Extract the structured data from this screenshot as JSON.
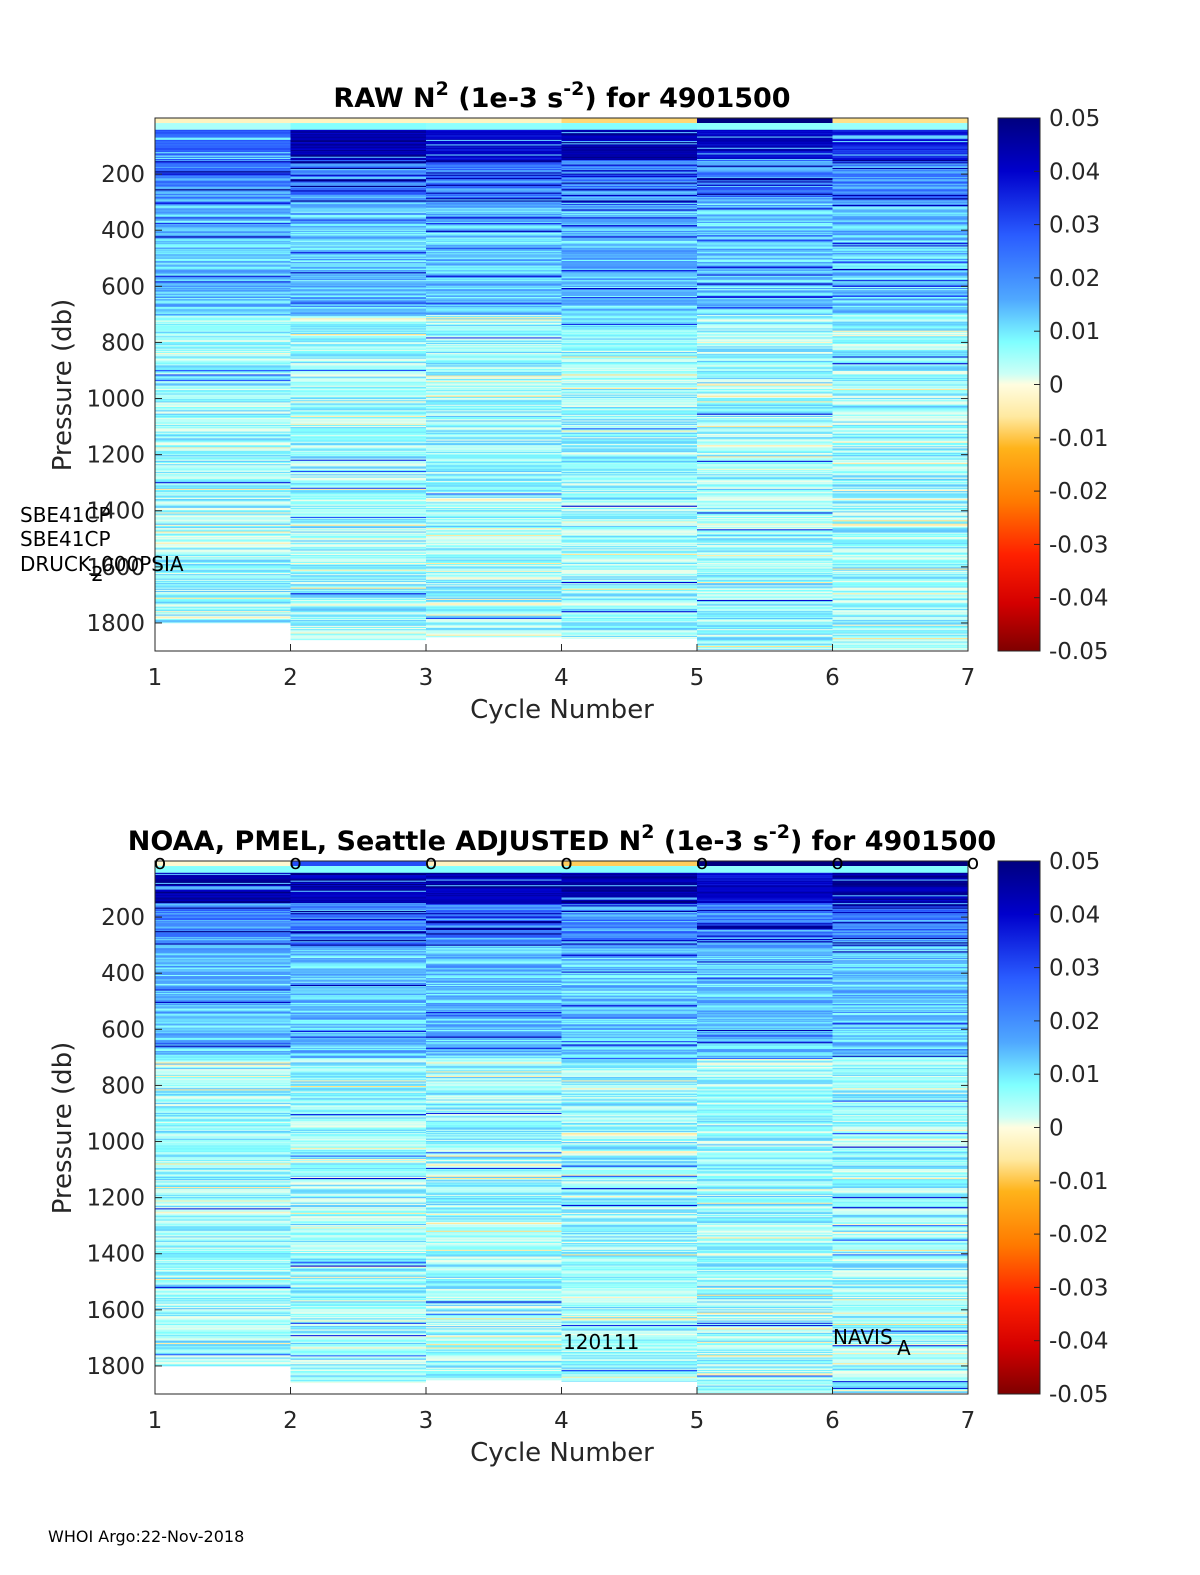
{
  "footer": "WHOI Argo:22-Nov-2018",
  "colors": {
    "deep_blue": "#00007f",
    "cyan": "#7fffff",
    "cream": "#fffde0",
    "dark_red": "#7f0000",
    "axis": "#262626"
  },
  "chart_data": [
    {
      "type": "heatmap",
      "title_parts": [
        "RAW N",
        "2",
        " (1e-3 s",
        "-2",
        ") for 4901500"
      ],
      "xlabel": "Cycle Number",
      "ylabel": "Pressure (db)",
      "xlim": [
        1,
        7
      ],
      "ylim": [
        1900,
        0
      ],
      "xticks": [
        1,
        2,
        3,
        4,
        5,
        6,
        7
      ],
      "yticks": [
        200,
        400,
        600,
        800,
        1000,
        1200,
        1400,
        1600,
        1800
      ],
      "colorbar": {
        "range": [
          -0.05,
          0.05
        ],
        "ticks": [
          "0.05",
          "0.04",
          "0.03",
          "0.02",
          "0.01",
          "0",
          "-0.01",
          "-0.02",
          "-0.03",
          "-0.04",
          "-0.05"
        ]
      },
      "columns": [
        {
          "cycle": 1,
          "pmax": 1800,
          "near_surface": 0.03,
          "surface_value": -0.002
        },
        {
          "cycle": 2,
          "pmax": 1860,
          "near_surface": 0.05,
          "surface_value": -0.002
        },
        {
          "cycle": 3,
          "pmax": 1850,
          "near_surface": 0.045,
          "surface_value": -0.002
        },
        {
          "cycle": 4,
          "pmax": 1855,
          "near_surface": 0.05,
          "surface_value": -0.006
        },
        {
          "cycle": 5,
          "pmax": 1895,
          "near_surface": 0.045,
          "surface_value": 0.05
        },
        {
          "cycle": 6,
          "pmax": 1895,
          "near_surface": 0.04,
          "surface_value": -0.005
        }
      ],
      "annotations": [
        "SBE41CP",
        "SBE41CP",
        "DRUCK_000PSIA",
        "2"
      ],
      "markers": []
    },
    {
      "type": "heatmap",
      "title_parts": [
        "NOAA, PMEL, Seattle  ADJUSTED N",
        "2",
        " (1e-3 s",
        "-2",
        ") for 4901500"
      ],
      "xlabel": "Cycle Number",
      "ylabel": "Pressure (db)",
      "xlim": [
        1,
        7
      ],
      "ylim": [
        1900,
        0
      ],
      "xticks": [
        1,
        2,
        3,
        4,
        5,
        6,
        7
      ],
      "yticks": [
        200,
        400,
        600,
        800,
        1000,
        1200,
        1400,
        1600,
        1800
      ],
      "colorbar": {
        "range": [
          -0.05,
          0.05
        ],
        "ticks": [
          "0.05",
          "0.04",
          "0.03",
          "0.02",
          "0.01",
          "0",
          "-0.01",
          "-0.02",
          "-0.03",
          "-0.04",
          "-0.05"
        ]
      },
      "columns": [
        {
          "cycle": 1,
          "pmax": 1800,
          "near_surface": 0.05,
          "surface_value": -0.001
        },
        {
          "cycle": 2,
          "pmax": 1860,
          "near_surface": 0.05,
          "surface_value": 0.03
        },
        {
          "cycle": 3,
          "pmax": 1850,
          "near_surface": 0.05,
          "surface_value": -0.002
        },
        {
          "cycle": 4,
          "pmax": 1855,
          "near_surface": 0.05,
          "surface_value": -0.007
        },
        {
          "cycle": 5,
          "pmax": 1895,
          "near_surface": 0.045,
          "surface_value": 0.05
        },
        {
          "cycle": 6,
          "pmax": 1895,
          "near_surface": 0.05,
          "surface_value": 0.05
        }
      ],
      "annotations": [
        "120111",
        "NAVIS",
        "A"
      ],
      "markers": [
        "o",
        "o",
        "o",
        "o",
        "o",
        "o",
        "o"
      ]
    }
  ]
}
